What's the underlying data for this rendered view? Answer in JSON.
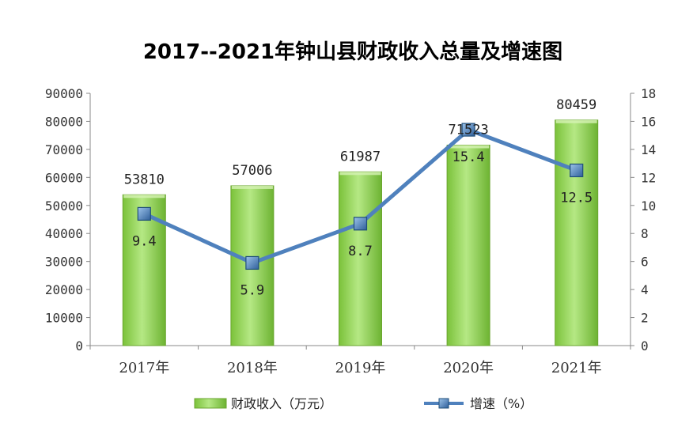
{
  "chart_data": {
    "type": "bar",
    "title": "2017--2021年钟山县财政收入总量及增速图",
    "categories": [
      "2017年",
      "2018年",
      "2019年",
      "2020年",
      "2021年"
    ],
    "series": [
      {
        "name": "财政收入（万元）",
        "type": "bar",
        "axis": "left",
        "values": [
          53810,
          57006,
          61987,
          71523,
          80459
        ],
        "color": "#8fd14f"
      },
      {
        "name": "增速（%）",
        "type": "line",
        "axis": "right",
        "values": [
          9.4,
          5.9,
          8.7,
          15.4,
          12.5
        ],
        "color": "#4f81bd"
      }
    ],
    "y_left": {
      "lim": [
        0,
        90000
      ],
      "ticks": [
        "0",
        "10000",
        "20000",
        "30000",
        "40000",
        "50000",
        "60000",
        "70000",
        "80000",
        "90000"
      ]
    },
    "y_right": {
      "lim": [
        0,
        18
      ],
      "ticks": [
        "0",
        "2",
        "4",
        "6",
        "8",
        "10",
        "12",
        "14",
        "16",
        "18"
      ]
    },
    "bar_labels": [
      "53810",
      "57006",
      "61987",
      "71523",
      "80459"
    ],
    "line_labels": [
      "9.4",
      "5.9",
      "8.7",
      "15.4",
      "12.5"
    ],
    "grid": false,
    "legend": "bottom"
  }
}
